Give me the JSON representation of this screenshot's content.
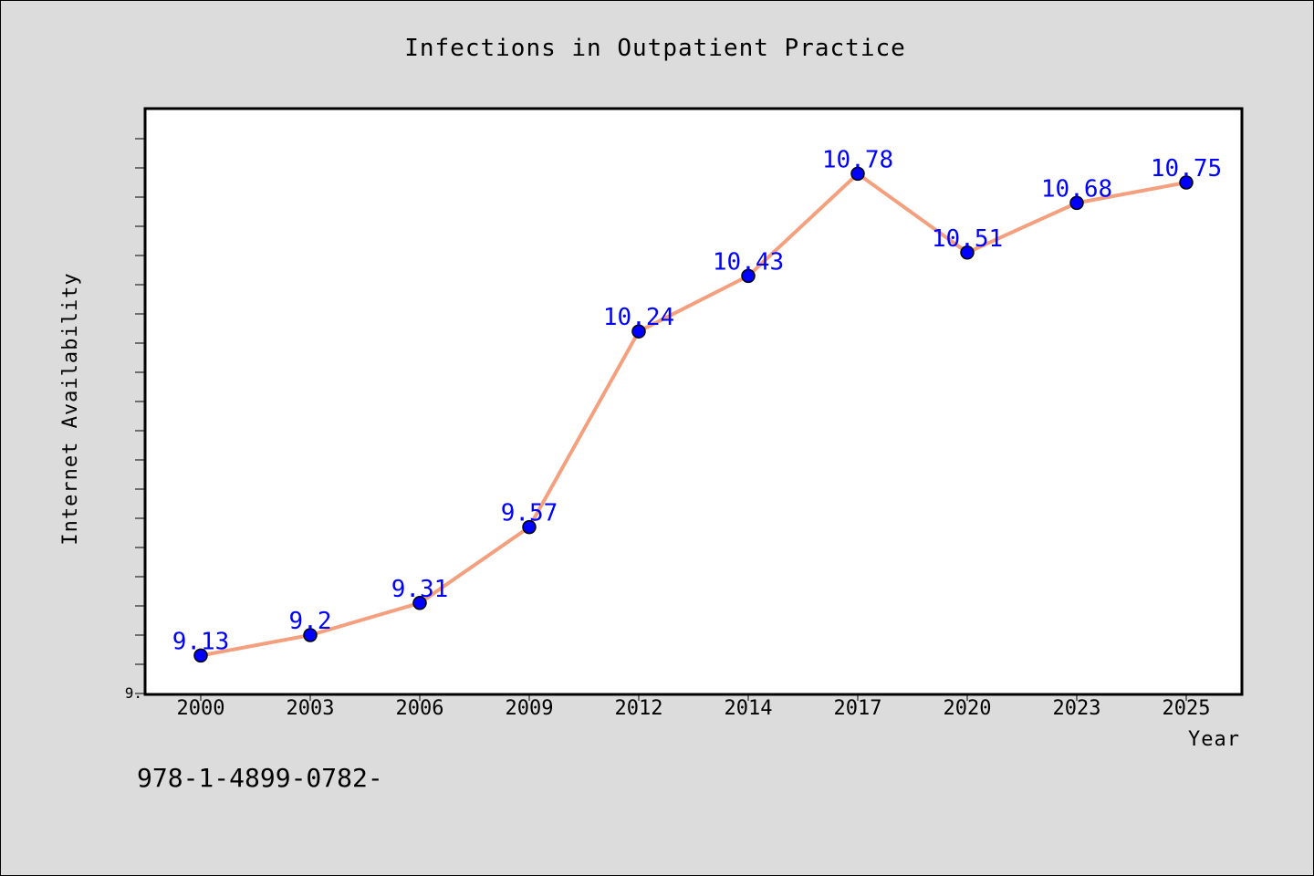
{
  "chart_data": {
    "type": "line",
    "title": "Infections in Outpatient Practice",
    "xlabel": "Year",
    "ylabel": "Internet Availability",
    "categories": [
      "2000",
      "2003",
      "2006",
      "2009",
      "2012",
      "2014",
      "2017",
      "2020",
      "2023",
      "2025"
    ],
    "series": [
      {
        "values": [
          9.13,
          9.2,
          9.31,
          9.57,
          10.24,
          10.43,
          10.78,
          10.51,
          10.68,
          10.75
        ],
        "data_labels": [
          "9.13",
          "9.2",
          "9.31",
          "9.57",
          "10.24",
          "10.43",
          "10.78",
          "10.51",
          "10.68",
          "10.75"
        ]
      }
    ],
    "ylim": [
      9.0,
      11.0
    ],
    "y_tick_labels": [
      {
        "value": 9.0,
        "label": "9."
      }
    ],
    "y_minor_tick_step": 0.1,
    "grid": false,
    "colors": {
      "line": "#f4a07f",
      "marker": "#0000ff",
      "data_label": "#0000ff",
      "plot_background": "#ffffff",
      "figure_background": "#dcdcdc"
    }
  },
  "footer": {
    "text": "978-1-4899-0782-"
  }
}
